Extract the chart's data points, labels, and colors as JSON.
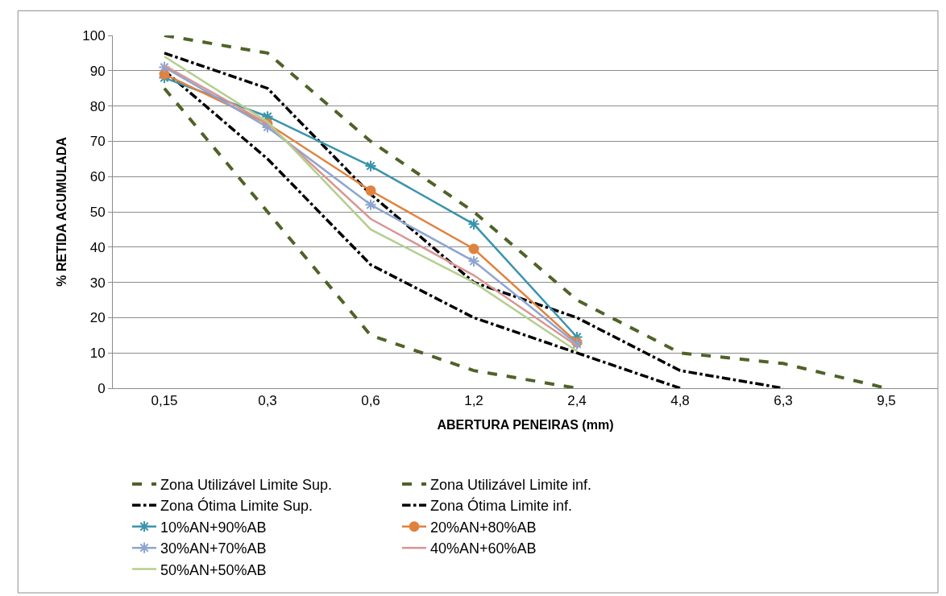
{
  "chart_data": {
    "type": "line",
    "xlabel": "ABERTURA PENEIRAS (mm)",
    "ylabel": "% RETIDA ACUMULADA",
    "categories": [
      "0,15",
      "0,3",
      "0,6",
      "1,2",
      "2,4",
      "4,8",
      "6,3",
      "9,5"
    ],
    "ylim": [
      0,
      100
    ],
    "yticks": [
      0,
      10,
      20,
      30,
      40,
      50,
      60,
      70,
      80,
      90,
      100
    ],
    "grid": "y",
    "legend": "bottom",
    "series": [
      {
        "name": "Zona Utilizável Limite Sup.",
        "color": "#4f6228",
        "line_style": "dashed",
        "marker": "none",
        "values": [
          100,
          95,
          70,
          50,
          25,
          10,
          7,
          0
        ]
      },
      {
        "name": "Zona Utilizável Limite inf.",
        "color": "#4f6228",
        "line_style": "dashed",
        "marker": "none",
        "values": [
          85,
          50,
          15,
          5,
          0,
          null,
          null,
          null
        ]
      },
      {
        "name": "Zona Ótima Limite Sup.",
        "color": "#000000",
        "line_style": "dashdot",
        "marker": "none",
        "values": [
          95,
          85,
          55,
          30,
          20,
          5,
          0,
          null
        ]
      },
      {
        "name": "Zona Ótima Limite inf.",
        "color": "#000000",
        "line_style": "dashdot",
        "marker": "none",
        "values": [
          90,
          65,
          35,
          20,
          10,
          0,
          null,
          null
        ]
      },
      {
        "name": "10%AN+90%AB",
        "color": "#3b94ad",
        "line_style": "solid",
        "marker": "cross",
        "values": [
          88,
          77,
          63,
          46.5,
          14.5,
          null,
          null,
          null
        ]
      },
      {
        "name": "20%AN+80%AB",
        "color": "#e0823d",
        "line_style": "solid",
        "marker": "circle",
        "values": [
          89,
          75,
          56,
          39.5,
          13,
          null,
          null,
          null
        ]
      },
      {
        "name": "30%AN+70%AB",
        "color": "#8ea5d0",
        "line_style": "solid",
        "marker": "cross",
        "values": [
          91,
          74,
          52,
          36,
          12.5,
          null,
          null,
          null
        ]
      },
      {
        "name": "40%AN+60%AB",
        "color": "#d99594",
        "line_style": "solid",
        "marker": "none",
        "values": [
          91.5,
          75,
          48,
          32,
          12,
          null,
          null,
          null
        ]
      },
      {
        "name": "50%AN+50%AB",
        "color": "#b3cf8e",
        "line_style": "solid",
        "marker": "none",
        "values": [
          94,
          75.5,
          45,
          30,
          10.5,
          null,
          null,
          null
        ]
      }
    ]
  }
}
